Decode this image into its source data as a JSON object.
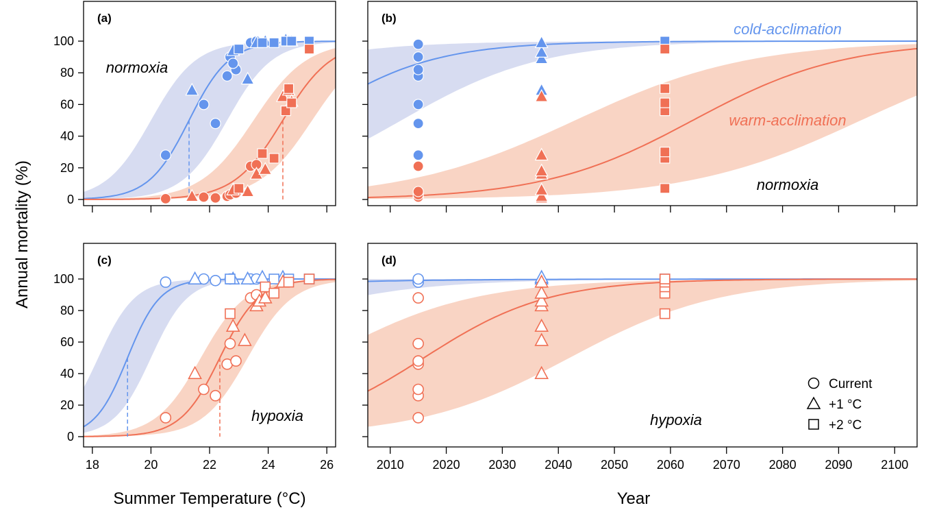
{
  "chart_data": [
    {
      "panel": "(a)",
      "type": "scatter",
      "xlabel": "Summer Temperature (°C)",
      "ylabel": "Annual mortality (%)",
      "xlim": [
        17.7,
        26.3
      ],
      "ylim": [
        0,
        105
      ],
      "xticks": [
        18,
        20,
        22,
        24,
        26
      ],
      "yticks": [
        0,
        20,
        40,
        60,
        80,
        100
      ],
      "annotation": "normoxia",
      "fit_lines": [
        {
          "acclimation": "cold",
          "midpoint": 21.3,
          "slope": 1.45,
          "band_lo_mid": 22.6,
          "band_hi_mid": 20.0,
          "band_slope": 1.3
        },
        {
          "acclimation": "warm",
          "midpoint": 24.5,
          "slope": 1.2,
          "band_lo_mid": 25.5,
          "band_hi_mid": 23.5,
          "band_slope": 1.1
        }
      ],
      "reference_lines": [
        21.3,
        24.5
      ],
      "series": [
        {
          "acclimation": "cold",
          "scenario": "Current",
          "points": [
            [
              20.5,
              28
            ],
            [
              21.8,
              60
            ],
            [
              22.2,
              48
            ],
            [
              22.6,
              78
            ],
            [
              22.7,
              90
            ],
            [
              22.9,
              82
            ],
            [
              22.8,
              86
            ],
            [
              23.4,
              99
            ],
            [
              23.6,
              100
            ]
          ]
        },
        {
          "acclimation": "cold",
          "scenario": "+1 °C",
          "points": [
            [
              21.4,
              69
            ],
            [
              22.8,
              94
            ],
            [
              23.3,
              76
            ],
            [
              23.6,
              99
            ],
            [
              23.9,
              100
            ],
            [
              24.6,
              101
            ],
            [
              24.7,
              100
            ],
            [
              24.8,
              100
            ]
          ]
        },
        {
          "acclimation": "cold",
          "scenario": "+2 °C",
          "points": [
            [
              23.0,
              95
            ],
            [
              23.8,
              99
            ],
            [
              24.2,
              99
            ],
            [
              24.6,
              100
            ],
            [
              24.8,
              100
            ],
            [
              25.4,
              100
            ]
          ]
        },
        {
          "acclimation": "warm",
          "scenario": "Current",
          "points": [
            [
              20.5,
              0.5
            ],
            [
              21.8,
              1.5
            ],
            [
              22.2,
              1
            ],
            [
              22.6,
              2
            ],
            [
              22.7,
              3
            ],
            [
              22.9,
              4
            ],
            [
              23.4,
              21
            ],
            [
              23.6,
              22
            ]
          ]
        },
        {
          "acclimation": "warm",
          "scenario": "+1 °C",
          "points": [
            [
              21.4,
              2
            ],
            [
              22.8,
              6
            ],
            [
              23.3,
              5
            ],
            [
              23.6,
              16
            ],
            [
              23.9,
              19
            ],
            [
              24.5,
              65
            ],
            [
              24.7,
              69
            ],
            [
              24.8,
              62
            ]
          ]
        },
        {
          "acclimation": "warm",
          "scenario": "+2 °C",
          "points": [
            [
              23.0,
              7
            ],
            [
              23.8,
              29
            ],
            [
              24.2,
              26
            ],
            [
              24.6,
              56
            ],
            [
              24.7,
              70
            ],
            [
              24.8,
              61
            ],
            [
              25.4,
              95
            ]
          ]
        }
      ]
    },
    {
      "panel": "(b)",
      "type": "scatter",
      "xlabel": "Year",
      "ylim": [
        0,
        105
      ],
      "xlim": [
        2006,
        2104
      ],
      "xticks": [
        2010,
        2020,
        2030,
        2040,
        2050,
        2060,
        2070,
        2080,
        2090,
        2100
      ],
      "yticks": [
        0,
        20,
        40,
        60,
        80,
        100
      ],
      "annotations": [
        "cold-acclimation",
        "warm-acclimation",
        "normoxia"
      ],
      "fit_lines": [
        {
          "acclimation": "cold",
          "midpoint": 1995,
          "slope": 0.09,
          "band_lo_mid": 2012,
          "band_hi_mid": 1970,
          "band_slope": 0.08
        },
        {
          "acclimation": "warm",
          "midpoint": 2064,
          "slope": 0.075,
          "band_lo_mid": 2094,
          "band_hi_mid": 2043,
          "band_slope": 0.065
        }
      ],
      "series": [
        {
          "acclimation": "cold",
          "scenario": "Current",
          "points": [
            [
              2015,
              28
            ],
            [
              2015,
              48
            ],
            [
              2015,
              60
            ],
            [
              2015,
              78
            ],
            [
              2015,
              82
            ],
            [
              2015,
              90
            ],
            [
              2015,
              98
            ]
          ]
        },
        {
          "acclimation": "cold",
          "scenario": "+1 °C",
          "points": [
            [
              2037,
              69
            ],
            [
              2037,
              89
            ],
            [
              2037,
              93
            ],
            [
              2037,
              99
            ]
          ]
        },
        {
          "acclimation": "cold",
          "scenario": "+2 °C",
          "points": [
            [
              2059,
              100
            ]
          ]
        },
        {
          "acclimation": "warm",
          "scenario": "Current",
          "points": [
            [
              2015,
              1.5
            ],
            [
              2015,
              3
            ],
            [
              2015,
              5
            ],
            [
              2015,
              21
            ]
          ]
        },
        {
          "acclimation": "warm",
          "scenario": "+1 °C",
          "points": [
            [
              2037,
              1
            ],
            [
              2037,
              2
            ],
            [
              2037,
              6
            ],
            [
              2037,
              16
            ],
            [
              2037,
              18
            ],
            [
              2037,
              28
            ],
            [
              2037,
              65
            ]
          ]
        },
        {
          "acclimation": "warm",
          "scenario": "+2 °C",
          "points": [
            [
              2059,
              7
            ],
            [
              2059,
              26
            ],
            [
              2059,
              30
            ],
            [
              2059,
              56
            ],
            [
              2059,
              61
            ],
            [
              2059,
              70
            ],
            [
              2059,
              95
            ]
          ]
        }
      ]
    },
    {
      "panel": "(c)",
      "type": "scatter",
      "xlim": [
        17.7,
        26.3
      ],
      "ylim": [
        0,
        105
      ],
      "xticks": [
        18,
        20,
        22,
        24,
        26
      ],
      "yticks": [
        0,
        20,
        40,
        60,
        80,
        100
      ],
      "annotation": "hypoxia",
      "fit_lines": [
        {
          "acclimation": "cold",
          "midpoint": 19.2,
          "slope": 1.8,
          "band_lo_mid": 20.0,
          "band_hi_mid": 18.2,
          "band_slope": 1.6
        },
        {
          "acclimation": "warm",
          "midpoint": 22.35,
          "slope": 1.5,
          "band_lo_mid": 23.3,
          "band_hi_mid": 21.7,
          "band_slope": 1.3
        }
      ],
      "reference_lines": [
        19.2,
        22.35
      ],
      "series": [
        {
          "acclimation": "cold",
          "scenario": "Current",
          "points": [
            [
              20.5,
              98
            ],
            [
              21.8,
              100
            ],
            [
              22.2,
              99
            ],
            [
              22.7,
              100
            ],
            [
              23.4,
              100
            ],
            [
              23.6,
              100
            ]
          ]
        },
        {
          "acclimation": "cold",
          "scenario": "+1 °C",
          "points": [
            [
              21.5,
              100
            ],
            [
              22.8,
              100
            ],
            [
              23.3,
              100
            ],
            [
              23.8,
              101
            ],
            [
              24.5,
              101
            ]
          ]
        },
        {
          "acclimation": "cold",
          "scenario": "+2 °C",
          "points": [
            [
              22.7,
              100
            ],
            [
              24.2,
              100
            ],
            [
              24.7,
              100
            ],
            [
              25.4,
              100
            ]
          ]
        },
        {
          "acclimation": "warm",
          "scenario": "Current",
          "points": [
            [
              20.5,
              12
            ],
            [
              21.8,
              30
            ],
            [
              22.2,
              26
            ],
            [
              22.6,
              46
            ],
            [
              22.7,
              59
            ],
            [
              22.9,
              48
            ],
            [
              23.4,
              88
            ],
            [
              23.6,
              90
            ]
          ]
        },
        {
          "acclimation": "warm",
          "scenario": "+1 °C",
          "points": [
            [
              21.5,
              40
            ],
            [
              22.8,
              70
            ],
            [
              23.2,
              61
            ],
            [
              23.6,
              83
            ],
            [
              23.7,
              86
            ],
            [
              23.9,
              88
            ],
            [
              24.5,
              98
            ]
          ]
        },
        {
          "acclimation": "warm",
          "scenario": "+2 °C",
          "points": [
            [
              22.7,
              78
            ],
            [
              23.9,
              95
            ],
            [
              24.2,
              91
            ],
            [
              24.7,
              98
            ],
            [
              25.4,
              100
            ]
          ]
        }
      ]
    },
    {
      "panel": "(d)",
      "type": "scatter",
      "xlim": [
        2006,
        2104
      ],
      "ylim": [
        0,
        105
      ],
      "xticks": [
        2010,
        2020,
        2030,
        2040,
        2050,
        2060,
        2070,
        2080,
        2090,
        2100
      ],
      "yticks": [
        0,
        20,
        40,
        60,
        80,
        100
      ],
      "annotation": "hypoxia",
      "fit_lines": [
        {
          "acclimation": "cold",
          "midpoint": 1930,
          "slope": 0.055,
          "band_lo_mid": 1975,
          "band_hi_mid": 1900,
          "band_slope": 0.07
        },
        {
          "acclimation": "warm",
          "midpoint": 2016,
          "slope": 0.09,
          "band_lo_mid": 2042,
          "band_hi_mid": 1998,
          "band_slope": 0.075
        }
      ],
      "series": [
        {
          "acclimation": "cold",
          "scenario": "Current",
          "points": [
            [
              2015,
              98
            ],
            [
              2015,
              100
            ]
          ]
        },
        {
          "acclimation": "cold",
          "scenario": "+1 °C",
          "points": [
            [
              2037,
              100
            ],
            [
              2037,
              101
            ]
          ]
        },
        {
          "acclimation": "cold",
          "scenario": "+2 °C",
          "points": [
            [
              2059,
              100
            ]
          ]
        },
        {
          "acclimation": "warm",
          "scenario": "Current",
          "points": [
            [
              2015,
              12
            ],
            [
              2015,
              26
            ],
            [
              2015,
              30
            ],
            [
              2015,
              46
            ],
            [
              2015,
              48
            ],
            [
              2015,
              59
            ],
            [
              2015,
              88
            ]
          ]
        },
        {
          "acclimation": "warm",
          "scenario": "+1 °C",
          "points": [
            [
              2037,
              40
            ],
            [
              2037,
              61
            ],
            [
              2037,
              70
            ],
            [
              2037,
              83
            ],
            [
              2037,
              86
            ],
            [
              2037,
              91
            ],
            [
              2037,
              98
            ]
          ]
        },
        {
          "acclimation": "warm",
          "scenario": "+2 °C",
          "points": [
            [
              2059,
              78
            ],
            [
              2059,
              91
            ],
            [
              2059,
              95
            ],
            [
              2059,
              98
            ],
            [
              2059,
              100
            ]
          ]
        }
      ]
    }
  ],
  "legend": {
    "entries": [
      {
        "label": "Current",
        "shape": "circle"
      },
      {
        "label": "+1 °C",
        "shape": "triangle"
      },
      {
        "label": "+2 °C",
        "shape": "square"
      }
    ],
    "position": "bottom-right of panel (d)"
  },
  "shared_labels": {
    "ylabel": "Annual mortality (%)",
    "xlabel_left": "Summer Temperature (°C)",
    "xlabel_right": "Year"
  },
  "colors": {
    "cold_line": "#6495ED",
    "cold_band": "#D7DCF1",
    "warm_line": "#F07055",
    "warm_band": "#F9D4C4",
    "axis": "#000000"
  }
}
